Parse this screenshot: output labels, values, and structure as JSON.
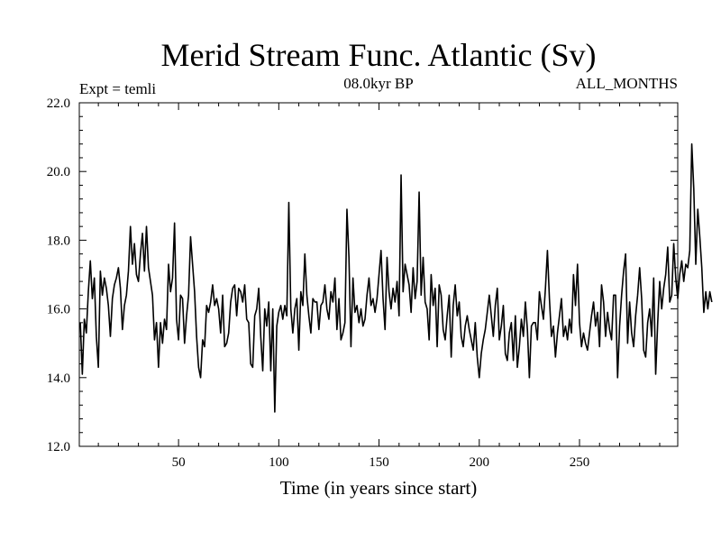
{
  "chart_data": {
    "type": "line",
    "title": "Merid Stream Func. Atlantic (Sv)",
    "subtitle": "08.0kyr BP",
    "left_note": "Expt = temli",
    "right_note": "ALL_MONTHS",
    "xlabel": "Time (in years since start)",
    "ylabel": "",
    "xlim": [
      0.5,
      299
    ],
    "ylim": [
      12.0,
      22.0
    ],
    "x_ticks": [
      50,
      100,
      150,
      200,
      250
    ],
    "x_tick_labels": [
      "50",
      "100",
      "150",
      "200",
      "250"
    ],
    "y_ticks": [
      12,
      14,
      16,
      18,
      20,
      22
    ],
    "y_tick_labels": [
      "12.0",
      "14.0",
      "16.0",
      "18.0",
      "20.0",
      "22.0"
    ],
    "grid": false,
    "series": [
      {
        "name": "Merid Stream Func. Atlantic",
        "x_start": 1,
        "x_step": 1,
        "values": [
          15.6,
          14.1,
          15.7,
          15.3,
          16.5,
          17.4,
          16.3,
          16.9,
          15.2,
          14.3,
          17.1,
          16.4,
          16.9,
          16.6,
          16.1,
          15.2,
          16.3,
          16.7,
          16.9,
          17.2,
          16.6,
          15.4,
          16.1,
          16.4,
          17.1,
          18.4,
          17.3,
          17.9,
          17.0,
          16.8,
          17.6,
          18.2,
          17.1,
          18.4,
          17.2,
          16.8,
          16.4,
          15.1,
          15.6,
          14.3,
          15.6,
          15.0,
          15.7,
          15.4,
          17.3,
          16.5,
          16.9,
          18.5,
          15.7,
          15.1,
          16.4,
          16.3,
          15.0,
          15.8,
          16.4,
          18.1,
          17.3,
          16.5,
          15.2,
          14.3,
          14.0,
          15.1,
          14.9,
          16.1,
          15.9,
          16.2,
          16.7,
          16.1,
          16.3,
          16.0,
          15.3,
          16.4,
          14.9,
          15.0,
          15.3,
          16.2,
          16.6,
          16.7,
          15.8,
          16.6,
          16.5,
          16.2,
          16.7,
          15.7,
          15.6,
          14.4,
          14.3,
          15.8,
          16.0,
          16.6,
          15.2,
          14.2,
          16.0,
          15.5,
          16.2,
          14.2,
          16.0,
          13.0,
          15.5,
          15.9,
          16.1,
          15.7,
          16.1,
          15.8,
          19.1,
          16.0,
          15.3,
          16.0,
          16.3,
          14.8,
          16.5,
          16.1,
          17.6,
          16.4,
          15.8,
          15.3,
          16.3,
          16.2,
          16.2,
          15.4,
          16.1,
          16.2,
          16.7,
          16.0,
          15.7,
          16.5,
          16.2,
          16.9,
          15.4,
          16.3,
          15.1,
          15.3,
          15.6,
          18.9,
          17.5,
          14.9,
          16.9,
          15.9,
          16.1,
          15.6,
          16.0,
          15.5,
          15.7,
          16.4,
          16.9,
          16.1,
          16.3,
          15.9,
          16.3,
          17.0,
          17.7,
          16.3,
          15.4,
          17.5,
          16.5,
          16.0,
          16.6,
          16.2,
          16.8,
          15.8,
          19.9,
          16.5,
          17.3,
          17.0,
          16.7,
          15.9,
          17.2,
          16.3,
          16.8,
          19.4,
          16.4,
          17.5,
          16.2,
          16.0,
          15.1,
          17.0,
          16.1,
          16.6,
          14.9,
          16.7,
          16.4,
          15.4,
          15.1,
          15.8,
          16.4,
          14.6,
          16.1,
          16.7,
          15.8,
          16.2,
          15.2,
          14.9,
          15.5,
          15.8,
          15.4,
          15.1,
          14.8,
          15.6,
          14.6,
          14.0,
          14.7,
          15.1,
          15.4,
          15.9,
          16.4,
          15.8,
          15.2,
          16.1,
          16.6,
          15.1,
          15.5,
          16.1,
          14.7,
          14.5,
          15.3,
          15.6,
          14.5,
          15.8,
          14.3,
          14.9,
          15.7,
          15.2,
          16.2,
          15.4,
          14.0,
          15.5,
          15.6,
          15.6,
          15.1,
          16.5,
          16.1,
          15.7,
          16.6,
          17.7,
          16.3,
          15.2,
          15.5,
          14.6,
          15.3,
          15.8,
          16.3,
          15.2,
          15.5,
          15.1,
          15.7,
          15.3,
          17.0,
          16.1,
          17.3,
          15.6,
          14.9,
          15.3,
          15.0,
          14.8,
          15.3,
          15.8,
          16.2,
          15.5,
          15.9,
          14.9,
          16.7,
          16.2,
          15.2,
          15.9,
          15.4,
          15.1,
          16.4,
          16.4,
          14.0,
          15.5,
          16.4,
          17.1,
          17.6,
          15.0,
          16.2,
          15.3,
          14.9,
          15.8,
          16.4,
          17.2,
          16.3,
          14.8,
          14.6,
          15.6,
          16.0,
          15.2,
          16.9,
          14.1,
          15.6,
          16.8,
          16.0,
          16.6,
          17.0,
          17.8,
          16.2,
          16.4,
          17.9,
          16.9,
          16.3,
          17.0,
          17.4,
          16.8,
          17.3,
          17.2,
          17.7,
          20.8,
          19.5,
          17.3,
          18.9,
          18.1,
          17.2,
          15.9,
          16.5,
          16.0,
          16.5,
          16.2
        ]
      }
    ]
  }
}
